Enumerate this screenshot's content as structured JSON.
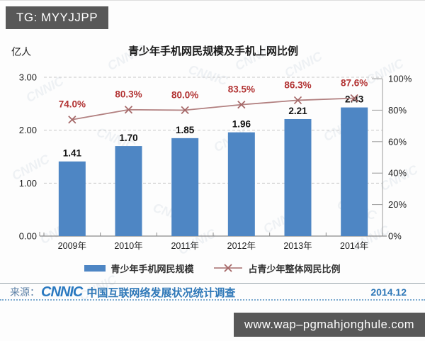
{
  "overlay": {
    "top_badge": "TG: MYYJJPP",
    "bottom_badge": "www.wap–pgmahjonghule.com"
  },
  "chart_data": {
    "type": "bar+line",
    "title": "青少年手机网民规模及手机上网比例",
    "left_axis": {
      "unit": "亿人",
      "ticks": [
        "3.00",
        "2.00",
        "1.00",
        "0.00"
      ],
      "min": 0,
      "max": 3
    },
    "right_axis": {
      "ticks": [
        "100%",
        "80%",
        "60%",
        "40%",
        "20%",
        "0%"
      ],
      "min": 0,
      "max": 100
    },
    "categories": [
      "2009年",
      "2010年",
      "2011年",
      "2012年",
      "2013年",
      "2014年"
    ],
    "series": [
      {
        "name": "青少年手机网民规模",
        "type": "bar",
        "values": [
          1.41,
          1.7,
          1.85,
          1.96,
          2.21,
          2.43
        ],
        "labels": [
          "1.41",
          "1.70",
          "1.85",
          "1.96",
          "2.21",
          "2.43"
        ],
        "color": "#4e86c4"
      },
      {
        "name": "占青少年整体网民比例",
        "type": "line",
        "values": [
          74.0,
          80.3,
          80.0,
          83.5,
          86.3,
          87.6
        ],
        "labels": [
          "74.0%",
          "80.3%",
          "80.0%",
          "83.5%",
          "86.3%",
          "87.6%"
        ],
        "color": "#b28080",
        "marker_color": "#a56767",
        "label_color": "#b23333"
      }
    ],
    "grid": "dashed-horizontal",
    "legend_position": "bottom"
  },
  "footer": {
    "source_prefix": "来源：",
    "logo": "CNNIC",
    "source_text": "中国互联网络发展状况统计调查",
    "date": "2014.12"
  },
  "watermark": "CNNIC"
}
